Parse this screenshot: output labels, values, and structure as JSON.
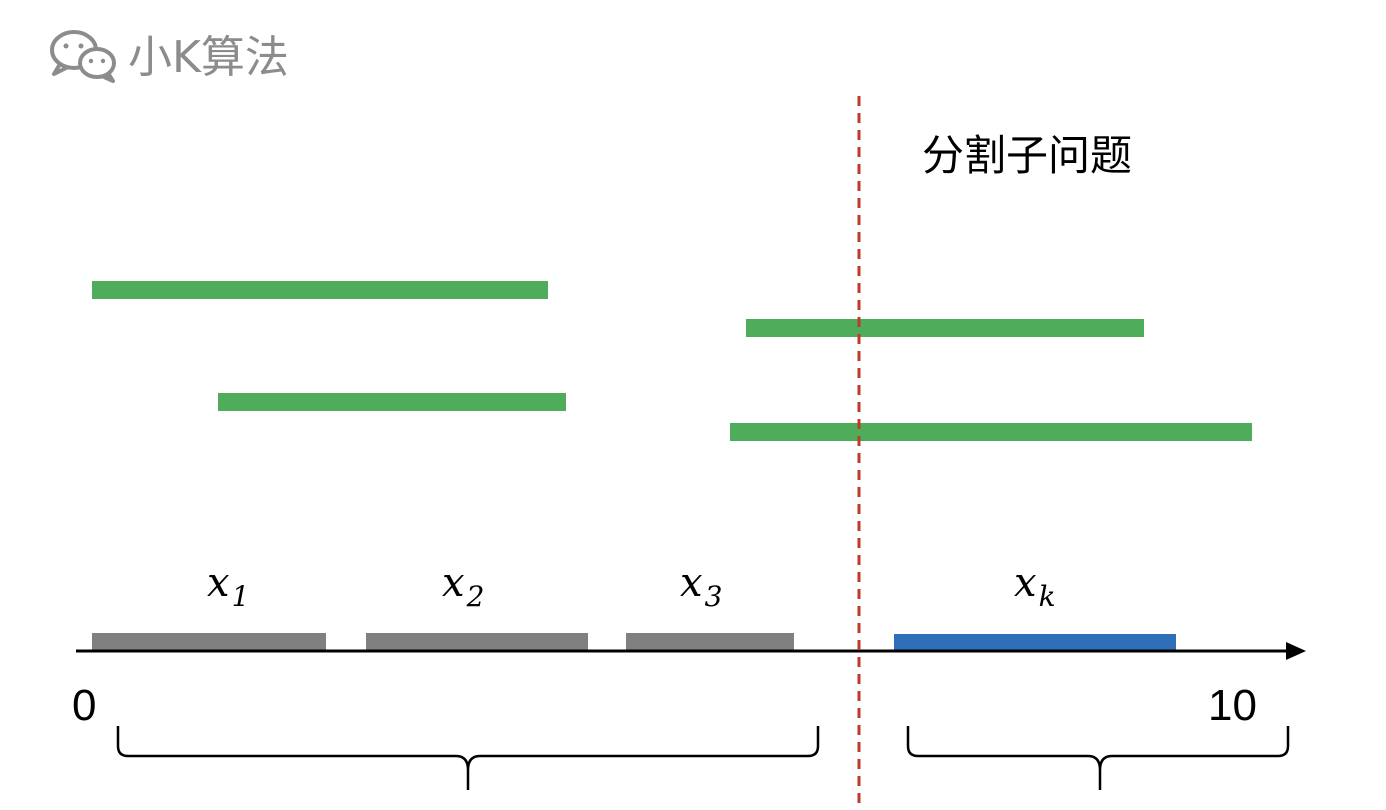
{
  "watermark": {
    "text": "小K算法",
    "icon": "wechat-icon"
  },
  "title": "分割子问题",
  "axis": {
    "min_label": "0",
    "max_label": "10"
  },
  "colors": {
    "interval": "#4fac5b",
    "segment": "#808080",
    "highlight": "#2f6fba",
    "divider": "#c0392b",
    "watermark": "#8c8c8c"
  },
  "segments": [
    {
      "var": "x",
      "sub": "1"
    },
    {
      "var": "x",
      "sub": "2"
    },
    {
      "var": "x",
      "sub": "3"
    },
    {
      "var": "x",
      "sub": "k"
    }
  ]
}
